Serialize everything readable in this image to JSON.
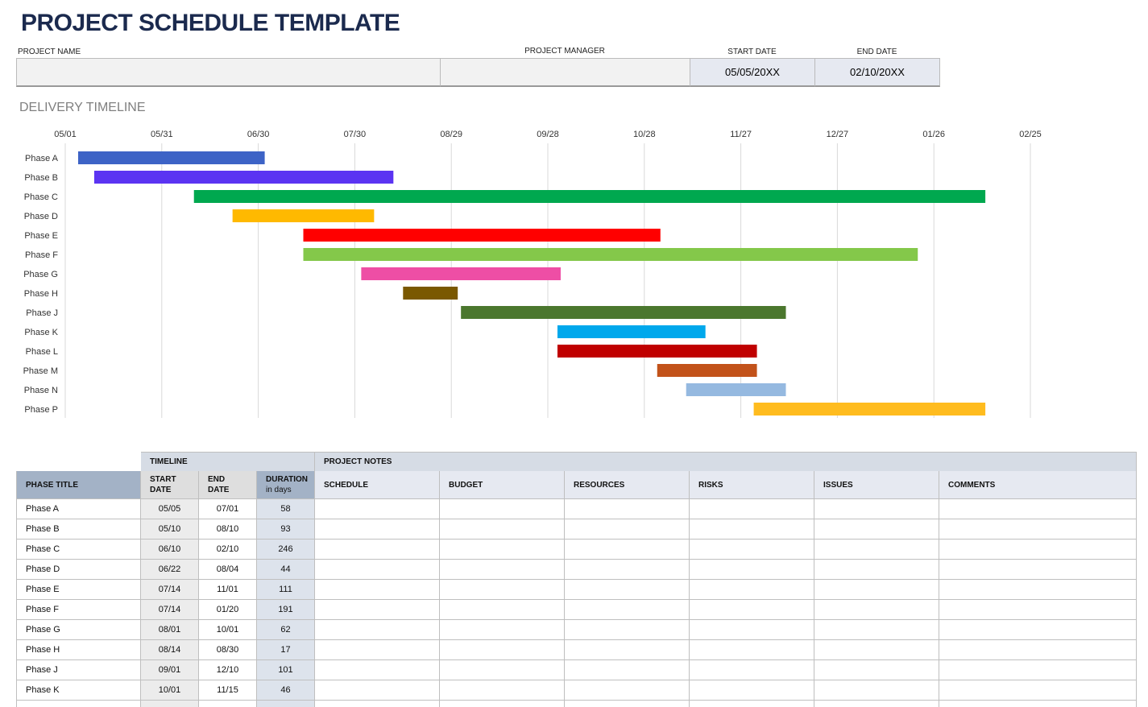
{
  "header": {
    "title": "PROJECT SCHEDULE TEMPLATE",
    "project_name_label": "PROJECT NAME",
    "project_manager_label": "PROJECT MANAGER",
    "start_date_label": "START DATE",
    "end_date_label": "END DATE",
    "start_date": "05/05/20XX",
    "end_date": "02/10/20XX"
  },
  "chart_data": {
    "type": "gantt",
    "title": "DELIVERY TIMELINE",
    "categories": [
      "Phase A",
      "Phase B",
      "Phase C",
      "Phase D",
      "Phase E",
      "Phase F",
      "Phase G",
      "Phase H",
      "Phase J",
      "Phase K",
      "Phase L",
      "Phase M",
      "Phase N",
      "Phase P"
    ],
    "start": [
      4,
      9,
      40,
      52,
      74,
      74,
      92,
      105,
      123,
      153,
      153,
      184,
      193,
      214
    ],
    "end": [
      62,
      102,
      286,
      96,
      185,
      265,
      154,
      122,
      224,
      199,
      215,
      215,
      224,
      286
    ],
    "colors": [
      "#3d63c6",
      "#5b34f2",
      "#00a84f",
      "#ffb900",
      "#ff0000",
      "#84c84a",
      "#ee4ea5",
      "#7a5800",
      "#4b772e",
      "#00a8ec",
      "#c00000",
      "#c2521a",
      "#95b9e0",
      "#ffbc1f"
    ],
    "xlim": [
      0,
      300
    ],
    "xticks": [
      {
        "value": 0,
        "label": "05/01"
      },
      {
        "value": 30,
        "label": "05/31"
      },
      {
        "value": 60,
        "label": "06/30"
      },
      {
        "value": 90,
        "label": "07/30"
      },
      {
        "value": 120,
        "label": "08/29"
      },
      {
        "value": 150,
        "label": "09/28"
      },
      {
        "value": 180,
        "label": "10/28"
      },
      {
        "value": 210,
        "label": "11/27"
      },
      {
        "value": 240,
        "label": "12/27"
      },
      {
        "value": 270,
        "label": "01/26"
      },
      {
        "value": 300,
        "label": "02/25"
      }
    ],
    "grid": true
  },
  "table": {
    "group_headers": [
      "TIMELINE",
      "PROJECT NOTES"
    ],
    "columns": [
      "PHASE TITLE",
      "START DATE",
      "END DATE",
      "DURATION",
      "SCHEDULE",
      "BUDGET",
      "RESOURCES",
      "RISKS",
      "ISSUES",
      "COMMENTS"
    ],
    "duration_unit": "in days",
    "rows": [
      [
        "Phase A",
        "05/05",
        "07/01",
        "58"
      ],
      [
        "Phase B",
        "05/10",
        "08/10",
        "93"
      ],
      [
        "Phase C",
        "06/10",
        "02/10",
        "246"
      ],
      [
        "Phase D",
        "06/22",
        "08/04",
        "44"
      ],
      [
        "Phase E",
        "07/14",
        "11/01",
        "111"
      ],
      [
        "Phase F",
        "07/14",
        "01/20",
        "191"
      ],
      [
        "Phase G",
        "08/01",
        "10/01",
        "62"
      ],
      [
        "Phase H",
        "08/14",
        "08/30",
        "17"
      ],
      [
        "Phase J",
        "09/01",
        "12/10",
        "101"
      ],
      [
        "Phase K",
        "10/01",
        "11/15",
        "46"
      ]
    ]
  }
}
